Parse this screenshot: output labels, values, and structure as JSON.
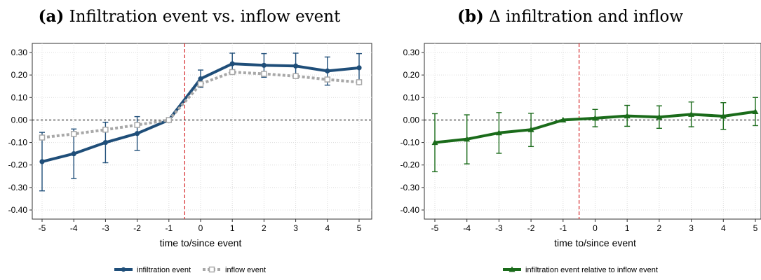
{
  "panels": {
    "a": {
      "label": "(a)",
      "title": "Infiltration event vs. inflow event"
    },
    "b": {
      "label": "(b)",
      "title": "Δ infiltration and inflow"
    }
  },
  "colors": {
    "infiltration": "#1f4e79",
    "inflow": "#a8a8a8",
    "relative": "#1a6b1a",
    "event_line": "#d62728"
  },
  "chart_data": [
    {
      "type": "line",
      "title": "(a) Infiltration event vs. inflow event",
      "xlabel": "time to/since event",
      "ylabel": "",
      "x": [
        -5,
        -4,
        -3,
        -2,
        -1,
        0,
        1,
        2,
        3,
        4,
        5
      ],
      "xticks": [
        "-5",
        "-4",
        "-3",
        "-2",
        "-1",
        "0",
        "1",
        "2",
        "3",
        "4",
        "5"
      ],
      "ylim": [
        -0.42,
        0.32
      ],
      "yticks": [
        "0.30",
        "0.20",
        "0.10",
        "0.00",
        "-0.10",
        "-0.20",
        "-0.30",
        "-0.40"
      ],
      "event_line_x": -0.5,
      "grid": true,
      "legend_position": "bottom-center",
      "series": [
        {
          "name": "infiltration event",
          "style": "solid",
          "marker": "circle",
          "values": [
            -0.185,
            -0.15,
            -0.1,
            -0.06,
            0.0,
            0.183,
            0.25,
            0.243,
            0.24,
            0.218,
            0.232
          ],
          "ci_low": [
            -0.315,
            -0.26,
            -0.19,
            -0.135,
            0.0,
            0.145,
            0.205,
            0.19,
            0.185,
            0.155,
            0.17
          ],
          "ci_high": [
            -0.055,
            -0.04,
            -0.01,
            0.015,
            0.0,
            0.222,
            0.297,
            0.295,
            0.297,
            0.28,
            0.295
          ]
        },
        {
          "name": "inflow event",
          "style": "dashed",
          "marker": "square",
          "values": [
            -0.078,
            -0.062,
            -0.043,
            -0.022,
            0.0,
            0.16,
            0.213,
            0.205,
            0.195,
            0.18,
            0.168
          ]
        }
      ]
    },
    {
      "type": "line",
      "title": "(b) Δ infiltration and inflow",
      "xlabel": "time to/since event",
      "ylabel": "",
      "x": [
        -5,
        -4,
        -3,
        -2,
        -1,
        0,
        1,
        2,
        3,
        4,
        5
      ],
      "xticks": [
        "-5",
        "-4",
        "-3",
        "-2",
        "-1",
        "0",
        "1",
        "2",
        "3",
        "4",
        "5"
      ],
      "ylim": [
        -0.42,
        0.32
      ],
      "yticks": [
        "0.30",
        "0.20",
        "0.10",
        "0.00",
        "-0.10",
        "-0.20",
        "-0.30",
        "-0.40"
      ],
      "event_line_x": -0.5,
      "grid": true,
      "legend_position": "bottom-center",
      "series": [
        {
          "name": "infiltration event relative to inflow event",
          "style": "solid",
          "marker": "triangle",
          "values": [
            -0.1,
            -0.085,
            -0.057,
            -0.043,
            0.0,
            0.008,
            0.018,
            0.013,
            0.025,
            0.017,
            0.037
          ],
          "ci_low": [
            -0.23,
            -0.195,
            -0.148,
            -0.118,
            0.0,
            -0.03,
            -0.028,
            -0.037,
            -0.03,
            -0.042,
            -0.025
          ],
          "ci_high": [
            0.028,
            0.023,
            0.033,
            0.03,
            0.0,
            0.047,
            0.065,
            0.063,
            0.08,
            0.077,
            0.1
          ]
        }
      ]
    }
  ]
}
